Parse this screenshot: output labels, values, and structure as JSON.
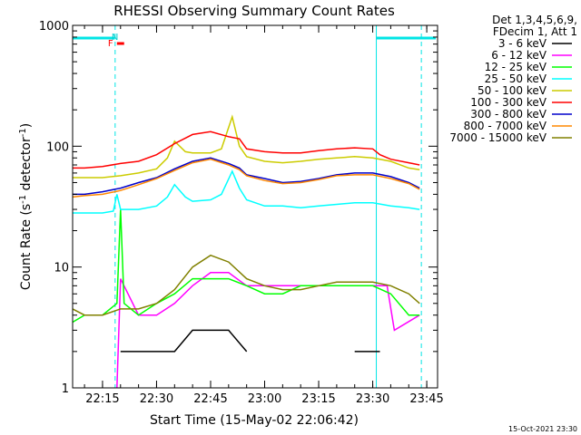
{
  "chart_data": {
    "type": "line",
    "title": "RHESSI Observing Summary Count Rates",
    "xlabel": "Start Time (15-May-02 22:06:42)",
    "ylabel_main": "Count Rate (s",
    "ylabel_sup1": "-1",
    "ylabel_mid": " detector",
    "ylabel_sup2": "-1",
    "ylabel_end": ")",
    "y_scale": "log",
    "ylim": [
      1,
      1000
    ],
    "xlim": [
      "22:06:42",
      "23:48:00"
    ],
    "x_ticks": [
      "22:15",
      "22:30",
      "22:45",
      "23:00",
      "23:15",
      "23:30",
      "23:45"
    ],
    "y_ticks": [
      "1",
      "10",
      "100",
      "1000"
    ],
    "footer_date": "15-Oct-2021 23:30",
    "legend": {
      "header_line1": "Det 1,3,4,5,6,9,",
      "header_line2": "FDecim 1, Att 1"
    },
    "flags": [
      {
        "label": "N",
        "color": "#00cccc"
      },
      {
        "label": "F",
        "color": "#ff0000"
      }
    ],
    "vertical_markers": [
      {
        "time": "22:06:42",
        "style": "solid"
      },
      {
        "time": "22:18:30",
        "style": "dashed"
      },
      {
        "time": "23:31:00",
        "style": "solid"
      },
      {
        "time": "23:43:30",
        "style": "dashed"
      }
    ],
    "night_bars": [
      {
        "start": "22:06:42",
        "end": "22:18:30"
      },
      {
        "start": "23:31:00",
        "end": "23:47:30"
      }
    ],
    "flare_bar": {
      "start": "22:19:00",
      "end": "22:21:00"
    },
    "series": [
      {
        "name": "3 - 6 keV",
        "color": "#000000",
        "x": [
          "22:06:42",
          "22:19:00",
          "22:20:00",
          "22:35:00",
          "22:40:00",
          "22:45:00",
          "22:50:00",
          "22:55:00",
          "23:00:00",
          "23:20:00",
          "23:25:00",
          "23:30:00",
          "23:32:00",
          "23:34:00"
        ],
        "y": [
          null,
          null,
          2,
          2,
          3,
          3,
          3,
          2,
          null,
          null,
          2,
          2,
          2,
          null
        ]
      },
      {
        "name": "6 - 12 keV",
        "color": "#ff00ff",
        "x": [
          "22:06:42",
          "22:19:00",
          "22:20:00",
          "22:25:00",
          "22:30:00",
          "22:35:00",
          "22:40:00",
          "22:45:00",
          "22:50:00",
          "22:55:00",
          "23:00:00",
          "23:05:00",
          "23:10:00",
          "23:15:00",
          "23:20:00",
          "23:25:00",
          "23:30:00",
          "23:34:00",
          "23:36:00",
          "23:43:00"
        ],
        "y": [
          null,
          1,
          8,
          4,
          4,
          5,
          7,
          9,
          9,
          7,
          7,
          7,
          7,
          7,
          7,
          7,
          7,
          7,
          3,
          4
        ]
      },
      {
        "name": "12 - 25 keV",
        "color": "#00ff00",
        "x": [
          "22:06:42",
          "22:10:00",
          "22:15:00",
          "22:19:00",
          "22:20:00",
          "22:21:00",
          "22:25:00",
          "22:30:00",
          "22:35:00",
          "22:40:00",
          "22:45:00",
          "22:50:00",
          "22:55:00",
          "23:00:00",
          "23:05:00",
          "23:10:00",
          "23:15:00",
          "23:20:00",
          "23:25:00",
          "23:30:00",
          "23:35:00",
          "23:40:00",
          "23:43:00"
        ],
        "y": [
          3.5,
          4,
          4,
          5,
          30,
          5,
          4,
          5,
          6,
          8,
          8,
          8,
          7,
          6,
          6,
          7,
          7,
          7,
          7,
          7,
          6,
          4,
          4
        ]
      },
      {
        "name": "25 - 50 keV",
        "color": "#00ffff",
        "x": [
          "22:06:42",
          "22:10:00",
          "22:15:00",
          "22:18:00",
          "22:19:00",
          "22:20:00",
          "22:25:00",
          "22:30:00",
          "22:33:00",
          "22:35:00",
          "22:38:00",
          "22:40:00",
          "22:45:00",
          "22:48:00",
          "22:51:00",
          "22:53:00",
          "22:55:00",
          "23:00:00",
          "23:05:00",
          "23:10:00",
          "23:15:00",
          "23:20:00",
          "23:25:00",
          "23:30:00",
          "23:35:00",
          "23:40:00",
          "23:43:00"
        ],
        "y": [
          28,
          28,
          28,
          29,
          40,
          30,
          30,
          32,
          38,
          48,
          38,
          35,
          36,
          40,
          62,
          45,
          36,
          32,
          32,
          31,
          32,
          33,
          34,
          34,
          32,
          31,
          30
        ]
      },
      {
        "name": "50 - 100 keV",
        "color": "#cccc00",
        "x": [
          "22:06:42",
          "22:10:00",
          "22:15:00",
          "22:20:00",
          "22:25:00",
          "22:30:00",
          "22:33:00",
          "22:35:00",
          "22:38:00",
          "22:40:00",
          "22:45:00",
          "22:48:00",
          "22:51:00",
          "22:53:00",
          "22:55:00",
          "23:00:00",
          "23:05:00",
          "23:10:00",
          "23:15:00",
          "23:20:00",
          "23:25:00",
          "23:30:00",
          "23:35:00",
          "23:40:00",
          "23:43:00"
        ],
        "y": [
          55,
          55,
          55,
          57,
          60,
          65,
          80,
          110,
          90,
          88,
          88,
          95,
          175,
          100,
          82,
          75,
          73,
          75,
          78,
          80,
          82,
          80,
          75,
          66,
          64
        ]
      },
      {
        "name": "100 - 300 keV",
        "color": "#ff0000",
        "x": [
          "22:06:42",
          "22:10:00",
          "22:15:00",
          "22:20:00",
          "22:25:00",
          "22:30:00",
          "22:35:00",
          "22:40:00",
          "22:45:00",
          "22:50:00",
          "22:53:00",
          "22:55:00",
          "23:00:00",
          "23:05:00",
          "23:10:00",
          "23:15:00",
          "23:20:00",
          "23:25:00",
          "23:30:00",
          "23:32:00",
          "23:35:00",
          "23:40:00",
          "23:43:00"
        ],
        "y": [
          66,
          66,
          68,
          72,
          75,
          85,
          105,
          125,
          132,
          120,
          115,
          95,
          90,
          88,
          88,
          92,
          95,
          97,
          95,
          85,
          78,
          73,
          70
        ]
      },
      {
        "name": "300 - 800 keV",
        "color": "#0000cc",
        "x": [
          "22:06:42",
          "22:10:00",
          "22:15:00",
          "22:20:00",
          "22:25:00",
          "22:30:00",
          "22:35:00",
          "22:40:00",
          "22:45:00",
          "22:50:00",
          "22:53:00",
          "22:55:00",
          "23:00:00",
          "23:05:00",
          "23:10:00",
          "23:15:00",
          "23:20:00",
          "23:25:00",
          "23:30:00",
          "23:35:00",
          "23:40:00",
          "23:43:00"
        ],
        "y": [
          40,
          40,
          42,
          45,
          50,
          55,
          65,
          75,
          80,
          72,
          66,
          58,
          54,
          50,
          51,
          54,
          58,
          60,
          60,
          56,
          50,
          45
        ]
      },
      {
        "name": "800 - 7000 keV",
        "color": "#ff8800",
        "x": [
          "22:06:42",
          "22:10:00",
          "22:15:00",
          "22:20:00",
          "22:25:00",
          "22:30:00",
          "22:35:00",
          "22:40:00",
          "22:45:00",
          "22:50:00",
          "22:53:00",
          "22:55:00",
          "23:00:00",
          "23:05:00",
          "23:10:00",
          "23:15:00",
          "23:20:00",
          "23:25:00",
          "23:30:00",
          "23:35:00",
          "23:40:00",
          "23:43:00"
        ],
        "y": [
          38,
          39,
          40,
          43,
          48,
          54,
          63,
          73,
          78,
          70,
          64,
          57,
          52,
          49,
          50,
          53,
          57,
          58,
          58,
          54,
          49,
          44
        ]
      },
      {
        "name": "7000 - 15000 keV",
        "color": "#808000",
        "x": [
          "22:06:42",
          "22:10:00",
          "22:15:00",
          "22:20:00",
          "22:25:00",
          "22:30:00",
          "22:35:00",
          "22:40:00",
          "22:45:00",
          "22:50:00",
          "22:55:00",
          "23:00:00",
          "23:05:00",
          "23:10:00",
          "23:15:00",
          "23:20:00",
          "23:25:00",
          "23:30:00",
          "23:35:00",
          "23:40:00",
          "23:43:00"
        ],
        "y": [
          4.5,
          4,
          4,
          4.5,
          4.5,
          5,
          6.5,
          10,
          12.5,
          11,
          8,
          7,
          6.5,
          6.5,
          7,
          7.5,
          7.5,
          7.5,
          7,
          6,
          5
        ]
      }
    ]
  }
}
